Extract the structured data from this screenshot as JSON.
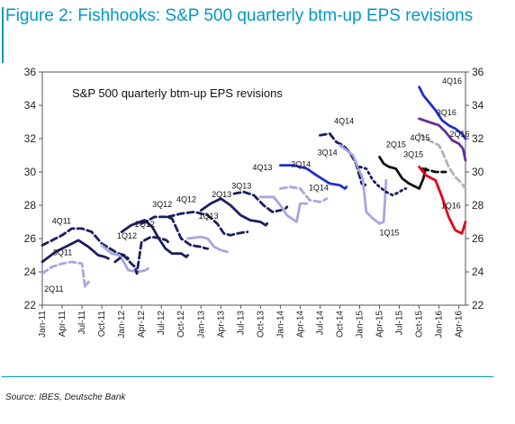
{
  "figure": {
    "title": "Figure 2: Fishhooks: S&P 500 quarterly btm-up EPS revisions",
    "source": "Source: IBES, Deutsche Bank"
  },
  "chart_data": {
    "type": "line",
    "title": "S&P 500 quarterly btm-up EPS revisions",
    "ylim": [
      22,
      36
    ],
    "yticks": [
      22,
      24,
      26,
      28,
      30,
      32,
      34,
      36
    ],
    "dual_y_axis": true,
    "grid": false,
    "legend": "none (series labeled inline)",
    "x_range": [
      "2011-01",
      "2016-05"
    ],
    "xticks": [
      "Jan-11",
      "Apr-11",
      "Jul-11",
      "Oct-11",
      "Jan-12",
      "Apr-12",
      "Jul-12",
      "Oct-12",
      "Jan-13",
      "Apr-13",
      "Jul-13",
      "Oct-13",
      "Jan-14",
      "Apr-14",
      "Jul-14",
      "Oct-14",
      "Jan-15",
      "Apr-15",
      "Jul-15",
      "Oct-15",
      "Jan-16",
      "Apr-16"
    ],
    "colors": {
      "navy": "#1a1f5e",
      "lavender": "#a7a6df",
      "blue": "#1f2fd0",
      "black": "#111111",
      "gray": "#b3b3b3",
      "red": "#e5001a",
      "purple": "#6a2e92"
    },
    "series": [
      {
        "name": "2Q11",
        "color": "#a7a6df",
        "dash": "dash",
        "points": [
          [
            "2011-01-01",
            23.9
          ],
          [
            "2011-02-15",
            24.3
          ],
          [
            "2011-04-01",
            24.5
          ],
          [
            "2011-05-15",
            24.6
          ],
          [
            "2011-07-01",
            24.5
          ],
          [
            "2011-07-15",
            23.1
          ],
          [
            "2011-08-01",
            23.4
          ]
        ]
      },
      {
        "name": "3Q11",
        "color": "#1a1f5e",
        "dash": "solid",
        "points": [
          [
            "2011-01-01",
            24.6
          ],
          [
            "2011-03-01",
            25.2
          ],
          [
            "2011-05-01",
            25.6
          ],
          [
            "2011-06-15",
            25.9
          ],
          [
            "2011-08-01",
            25.5
          ],
          [
            "2011-09-15",
            25.0
          ],
          [
            "2011-10-15",
            24.9
          ],
          [
            "2011-11-01",
            24.8
          ]
        ]
      },
      {
        "name": "4Q11",
        "color": "#1a1f5e",
        "dash": "dash",
        "points": [
          [
            "2011-01-01",
            25.6
          ],
          [
            "2011-04-01",
            26.2
          ],
          [
            "2011-05-15",
            26.6
          ],
          [
            "2011-07-01",
            26.6
          ],
          [
            "2011-08-15",
            26.4
          ],
          [
            "2011-10-01",
            25.7
          ],
          [
            "2011-12-15",
            25.1
          ],
          [
            "2012-01-15",
            25.0
          ],
          [
            "2012-02-01",
            24.8
          ]
        ]
      },
      {
        "name": "1Q12",
        "color": "#a7a6df",
        "dash": "solid",
        "points": [
          [
            "2011-10-01",
            25.6
          ],
          [
            "2011-11-15",
            25.1
          ],
          [
            "2011-12-20",
            25.0
          ],
          [
            "2012-01-15",
            24.5
          ],
          [
            "2012-02-01",
            24.1
          ],
          [
            "2012-03-15",
            24.0
          ],
          [
            "2012-04-20",
            24.1
          ],
          [
            "2012-05-01",
            24.2
          ]
        ]
      },
      {
        "name": "2Q12",
        "color": "#1a1f5e",
        "dash": "dash",
        "points": [
          [
            "2011-12-01",
            24.6
          ],
          [
            "2012-01-10",
            25.0
          ],
          [
            "2012-02-15",
            24.5
          ],
          [
            "2012-03-01",
            24.3
          ],
          [
            "2012-03-10",
            23.9
          ],
          [
            "2012-04-01",
            25.8
          ],
          [
            "2012-05-15",
            26.1
          ],
          [
            "2012-07-01",
            26.0
          ],
          [
            "2012-07-25",
            25.9
          ],
          [
            "2012-08-01",
            25.8
          ]
        ]
      },
      {
        "name": "3Q12",
        "color": "#1a1f5e",
        "dash": "solid",
        "points": [
          [
            "2012-01-01",
            26.4
          ],
          [
            "2012-02-15",
            26.8
          ],
          [
            "2012-04-15",
            27.1
          ],
          [
            "2012-05-20",
            26.7
          ],
          [
            "2012-06-20",
            26.0
          ],
          [
            "2012-07-20",
            25.4
          ],
          [
            "2012-08-20",
            25.1
          ],
          [
            "2012-10-01",
            25.1
          ],
          [
            "2012-10-25",
            24.9
          ],
          [
            "2012-11-01",
            25.0
          ]
        ]
      },
      {
        "name": "4Q12",
        "color": "#1a1f5e",
        "dash": "dash",
        "points": [
          [
            "2012-04-01",
            26.9
          ],
          [
            "2012-06-01",
            27.3
          ],
          [
            "2012-07-20",
            27.3
          ],
          [
            "2012-08-20",
            27.2
          ],
          [
            "2012-10-01",
            26.0
          ],
          [
            "2012-11-15",
            25.6
          ],
          [
            "2013-01-01",
            25.5
          ],
          [
            "2013-01-25",
            25.4
          ],
          [
            "2013-02-01",
            25.4
          ]
        ]
      },
      {
        "name": "1Q13",
        "color": "#a7a6df",
        "dash": "solid",
        "points": [
          [
            "2012-11-01",
            26.0
          ],
          [
            "2013-01-01",
            26.1
          ],
          [
            "2013-02-01",
            26.0
          ],
          [
            "2013-03-01",
            25.5
          ],
          [
            "2013-04-01",
            25.3
          ],
          [
            "2013-05-01",
            25.2
          ]
        ]
      },
      {
        "name": "2Q13",
        "color": "#1a1f5e",
        "dash": "dash",
        "points": [
          [
            "2012-08-01",
            27.3
          ],
          [
            "2012-10-01",
            27.5
          ],
          [
            "2012-12-01",
            27.6
          ],
          [
            "2013-02-01",
            27.4
          ],
          [
            "2013-03-15",
            26.9
          ],
          [
            "2013-04-15",
            26.3
          ],
          [
            "2013-05-15",
            26.2
          ],
          [
            "2013-06-15",
            26.3
          ],
          [
            "2013-07-25",
            26.4
          ],
          [
            "2013-08-01",
            26.4
          ]
        ]
      },
      {
        "name": "3Q13",
        "color": "#1a1f5e",
        "dash": "solid",
        "points": [
          [
            "2013-01-01",
            27.7
          ],
          [
            "2013-02-15",
            28.1
          ],
          [
            "2013-04-01",
            28.4
          ],
          [
            "2013-05-15",
            28.0
          ],
          [
            "2013-07-01",
            27.4
          ],
          [
            "2013-08-15",
            27.1
          ],
          [
            "2013-10-01",
            27.0
          ],
          [
            "2013-10-25",
            26.8
          ],
          [
            "2013-11-01",
            26.9
          ]
        ]
      },
      {
        "name": "4Q13",
        "color": "#1a1f5e",
        "dash": "dash",
        "points": [
          [
            "2013-06-01",
            28.7
          ],
          [
            "2013-07-15",
            28.8
          ],
          [
            "2013-09-01",
            28.6
          ],
          [
            "2013-10-15",
            28.0
          ],
          [
            "2013-11-25",
            27.6
          ],
          [
            "2014-01-01",
            27.7
          ],
          [
            "2014-01-25",
            27.8
          ],
          [
            "2014-02-01",
            27.9
          ]
        ]
      },
      {
        "name": "1Q14",
        "color": "#a7a6df",
        "dash": "solid",
        "points": [
          [
            "2013-10-01",
            28.5
          ],
          [
            "2013-12-01",
            28.5
          ],
          [
            "2014-01-01",
            28.0
          ],
          [
            "2014-02-01",
            27.4
          ],
          [
            "2014-03-15",
            27.0
          ],
          [
            "2014-04-01",
            28.1
          ],
          [
            "2014-05-01",
            28.1
          ]
        ]
      },
      {
        "name": "2Q14",
        "color": "#a7a6df",
        "dash": "dash",
        "points": [
          [
            "2014-01-01",
            29.0
          ],
          [
            "2014-02-15",
            29.1
          ],
          [
            "2014-04-01",
            29.0
          ],
          [
            "2014-05-15",
            28.3
          ],
          [
            "2014-07-01",
            28.2
          ],
          [
            "2014-07-20",
            28.3
          ],
          [
            "2014-08-01",
            28.4
          ]
        ]
      },
      {
        "name": "3Q14",
        "color": "#1f2fd0",
        "dash": "solid",
        "points": [
          [
            "2014-01-01",
            30.4
          ],
          [
            "2014-03-01",
            30.4
          ],
          [
            "2014-05-01",
            30.2
          ],
          [
            "2014-06-15",
            29.8
          ],
          [
            "2014-08-15",
            29.3
          ],
          [
            "2014-10-01",
            29.2
          ],
          [
            "2014-10-25",
            29.0
          ],
          [
            "2014-11-01",
            29.1
          ]
        ]
      },
      {
        "name": "4Q14",
        "color": "#1a1f5e",
        "dash": "dash",
        "points": [
          [
            "2014-07-01",
            32.2
          ],
          [
            "2014-08-15",
            32.3
          ],
          [
            "2014-09-15",
            31.8
          ],
          [
            "2014-10-15",
            31.6
          ],
          [
            "2014-11-15",
            31.2
          ],
          [
            "2014-12-15",
            30.5
          ],
          [
            "2015-01-10",
            29.3
          ],
          [
            "2015-01-25",
            29.2
          ],
          [
            "2015-02-01",
            29.3
          ]
        ]
      },
      {
        "name": "1Q15",
        "color": "#a7a6df",
        "dash": "solid",
        "points": [
          [
            "2014-10-01",
            31.6
          ],
          [
            "2014-12-01",
            31.0
          ],
          [
            "2015-01-15",
            29.6
          ],
          [
            "2015-02-01",
            27.6
          ],
          [
            "2015-03-01",
            27.2
          ],
          [
            "2015-04-01",
            26.9
          ],
          [
            "2015-04-20",
            27.0
          ],
          [
            "2015-05-01",
            29.5
          ]
        ]
      },
      {
        "name": "2Q15",
        "color": "#1a1f5e",
        "dash": "dot",
        "points": [
          [
            "2015-01-01",
            30.3
          ],
          [
            "2015-02-01",
            30.2
          ],
          [
            "2015-03-01",
            29.5
          ],
          [
            "2015-04-01",
            29.1
          ],
          [
            "2015-05-01",
            28.8
          ],
          [
            "2015-06-01",
            28.6
          ],
          [
            "2015-07-01",
            28.8
          ],
          [
            "2015-07-25",
            29.0
          ],
          [
            "2015-08-01",
            29.0
          ]
        ]
      },
      {
        "name": "3Q15",
        "color": "#111111",
        "dash": "solid",
        "points": [
          [
            "2015-04-01",
            30.9
          ],
          [
            "2015-04-20",
            30.5
          ],
          [
            "2015-05-15",
            30.3
          ],
          [
            "2015-06-15",
            30.2
          ],
          [
            "2015-07-15",
            29.6
          ],
          [
            "2015-08-15",
            29.3
          ],
          [
            "2015-10-01",
            29.0
          ],
          [
            "2015-10-20",
            29.6
          ],
          [
            "2015-11-01",
            30.2
          ]
        ]
      },
      {
        "name": "4Q15",
        "color": "#111111",
        "dash": "dash",
        "points": [
          [
            "2015-10-15",
            30.2
          ],
          [
            "2015-11-15",
            30.1
          ],
          [
            "2015-12-15",
            30.0
          ],
          [
            "2016-01-10",
            30.0
          ],
          [
            "2016-02-01",
            30.0
          ]
        ]
      },
      {
        "name": "4Q16",
        "color": "#1f2fd0",
        "dash": "solid",
        "points": [
          [
            "2015-10-01",
            35.1
          ],
          [
            "2015-10-20",
            34.6
          ],
          [
            "2015-11-15",
            34.2
          ],
          [
            "2015-12-15",
            33.7
          ],
          [
            "2016-01-15",
            33.1
          ],
          [
            "2016-02-15",
            32.8
          ],
          [
            "2016-03-15",
            32.6
          ],
          [
            "2016-04-15",
            32.3
          ],
          [
            "2016-05-01",
            32.0
          ]
        ]
      },
      {
        "name": "3Q16",
        "color": "#6a2e92",
        "dash": "solid",
        "points": [
          [
            "2015-10-01",
            33.2
          ],
          [
            "2015-11-15",
            33.0
          ],
          [
            "2016-01-01",
            32.8
          ],
          [
            "2016-02-01",
            32.4
          ],
          [
            "2016-03-01",
            31.9
          ],
          [
            "2016-04-01",
            31.7
          ],
          [
            "2016-04-20",
            31.4
          ],
          [
            "2016-05-01",
            30.7
          ]
        ]
      },
      {
        "name": "2Q16",
        "color": "#b3b3b3",
        "dash": "dash",
        "points": [
          [
            "2015-10-01",
            32.3
          ],
          [
            "2015-11-15",
            31.9
          ],
          [
            "2016-01-01",
            31.6
          ],
          [
            "2016-01-20",
            31.1
          ],
          [
            "2016-02-15",
            30.3
          ],
          [
            "2016-03-15",
            29.7
          ],
          [
            "2016-04-15",
            29.3
          ],
          [
            "2016-05-01",
            29.0
          ]
        ]
      },
      {
        "name": "1Q16",
        "color": "#e5001a",
        "dash": "solid",
        "points": [
          [
            "2015-10-01",
            30.3
          ],
          [
            "2015-11-01",
            29.8
          ],
          [
            "2015-12-15",
            29.5
          ],
          [
            "2016-01-15",
            28.5
          ],
          [
            "2016-02-15",
            27.3
          ],
          [
            "2016-03-15",
            26.5
          ],
          [
            "2016-04-15",
            26.3
          ],
          [
            "2016-05-01",
            27.0
          ]
        ]
      }
    ],
    "labels": [
      {
        "text": "2Q11",
        "at": [
          "2011-01-10",
          22.8
        ]
      },
      {
        "text": "3Q11",
        "at": [
          "2011-02-20",
          25.0
        ]
      },
      {
        "text": "4Q11",
        "at": [
          "2011-02-15",
          26.9
        ]
      },
      {
        "text": "1Q12",
        "at": [
          "2011-12-10",
          26.0
        ]
      },
      {
        "text": "2Q12",
        "at": [
          "2012-03-01",
          26.7
        ]
      },
      {
        "text": "3Q12",
        "at": [
          "2012-05-20",
          27.9
        ]
      },
      {
        "text": "4Q12",
        "at": [
          "2012-09-10",
          28.2
        ]
      },
      {
        "text": "1Q13",
        "at": [
          "2012-12-20",
          27.2
        ]
      },
      {
        "text": "2Q13",
        "at": [
          "2013-02-20",
          28.5
        ]
      },
      {
        "text": "3Q13",
        "at": [
          "2013-05-20",
          29.0
        ]
      },
      {
        "text": "4Q13",
        "at": [
          "2013-08-25",
          30.1
        ]
      },
      {
        "text": "1Q14",
        "at": [
          "2014-05-10",
          28.9
        ]
      },
      {
        "text": "2Q14",
        "at": [
          "2014-02-20",
          30.3
        ]
      },
      {
        "text": "3Q14",
        "at": [
          "2014-06-20",
          31.0
        ]
      },
      {
        "text": "4Q14",
        "at": [
          "2014-09-05",
          32.9
        ]
      },
      {
        "text": "1Q15",
        "at": [
          "2015-04-01",
          26.2
        ]
      },
      {
        "text": "2Q15",
        "at": [
          "2015-05-01",
          31.5
        ]
      },
      {
        "text": "3Q15",
        "at": [
          "2015-07-20",
          30.9
        ]
      },
      {
        "text": "4Q15",
        "at": [
          "2015-08-20",
          31.9
        ]
      },
      {
        "text": "4Q16",
        "at": [
          "2016-01-15",
          35.3
        ]
      },
      {
        "text": "3Q16",
        "at": [
          "2015-12-20",
          33.4
        ]
      },
      {
        "text": "2Q16",
        "at": [
          "2016-02-20",
          32.1
        ]
      },
      {
        "text": "1Q16",
        "at": [
          "2016-01-10",
          27.8
        ]
      }
    ]
  }
}
